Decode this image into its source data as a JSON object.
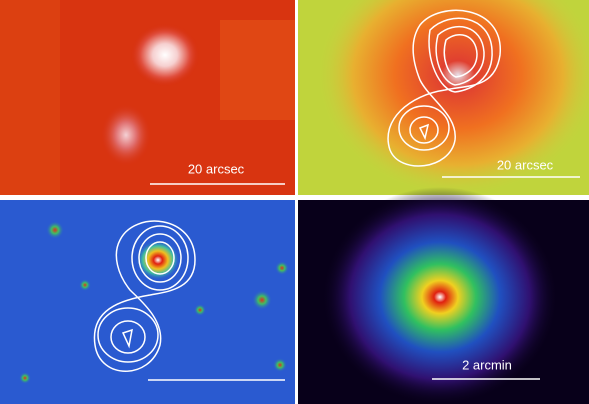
{
  "panels": [
    {
      "scale_label": "20 arcsec"
    },
    {
      "scale_label": "20 arcsec"
    },
    {
      "scale_label": "2 arcmin"
    }
  ]
}
